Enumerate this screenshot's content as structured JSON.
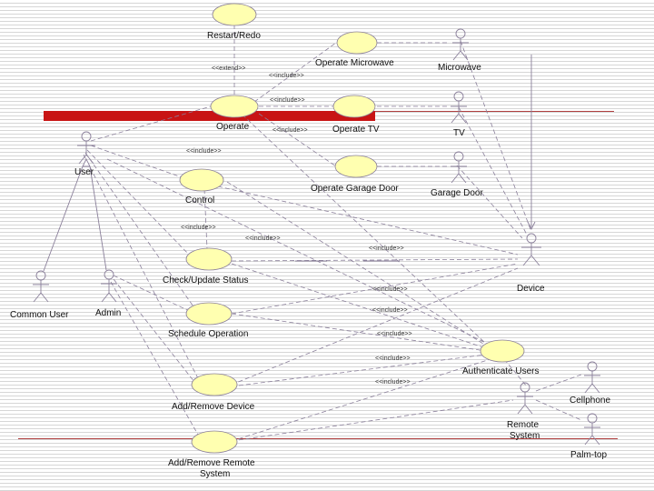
{
  "use_cases": {
    "restart_redo": "Restart/Redo",
    "operate_microwave": "Operate Microwave",
    "operate": "Operate",
    "operate_tv": "Operate TV",
    "operate_garage_door": "Operate Garage Door",
    "control": "Control",
    "check_update_status": "Check/Update Status",
    "schedule_operation": "Schedule Operation",
    "add_remove_device": "Add/Remove Device",
    "add_remove_remote_system_line1": "Add/Remove Remote",
    "add_remove_remote_system_line2": "System",
    "authenticate_users": "Authenticate Users"
  },
  "actors": {
    "user": "User",
    "common_user": "Common User",
    "admin": "Admin",
    "microwave": "Microwave",
    "tv": "TV",
    "garage_door": "Garage Door",
    "device": "Device",
    "remote_system_line1": "Remote",
    "remote_system_line2": "System",
    "cellphone": "Cellphone",
    "palm_top": "Palm-top"
  },
  "stereotypes": {
    "extend": "<<extend>>",
    "include": "<<include>>"
  },
  "colors": {
    "use_case_fill": "#ffffb0",
    "red_band": "#c81414",
    "line": "#8a7f9a"
  }
}
